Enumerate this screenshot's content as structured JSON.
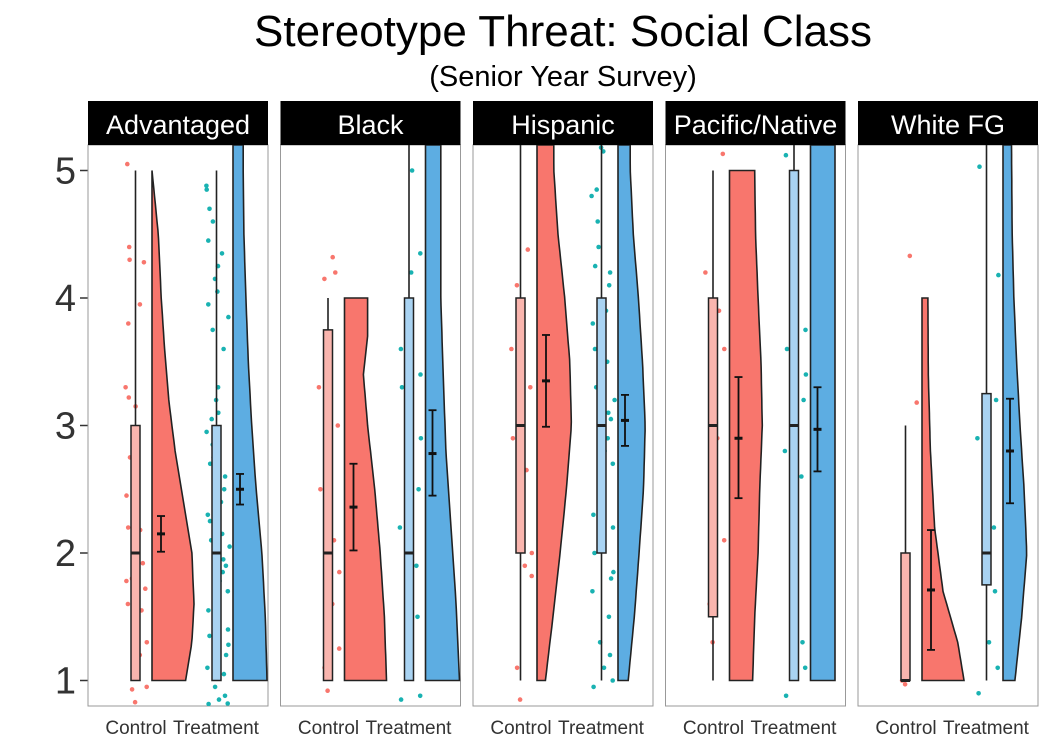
{
  "chart_data": {
    "type": "raincloud",
    "title": "Stereotype Threat: Social Class",
    "subtitle": "(Senior Year Survey)",
    "xlabel": "",
    "ylabel": "",
    "ylim": [
      0.8,
      5.2
    ],
    "yticks": [
      1,
      2,
      3,
      4,
      5
    ],
    "groups": [
      "Control",
      "Treatment"
    ],
    "colors": {
      "Control": "#f8766d",
      "Treatment": "#5dade2",
      "control_box": "#f9b5ae",
      "treatment_box": "#a9d3f2",
      "treatment_points": "#19b2b2"
    },
    "panels": [
      {
        "name": "Advantaged",
        "control": {
          "box": {
            "min": 1,
            "q1": 1,
            "median": 2,
            "q3": 3,
            "max": 5
          },
          "mean": 2.15,
          "ci": [
            2.01,
            2.29
          ],
          "density_range": [
            1,
            5
          ],
          "density": [
            [
              1,
              0.8
            ],
            [
              1.3,
              0.95
            ],
            [
              1.6,
              1.0
            ],
            [
              2.0,
              0.95
            ],
            [
              2.4,
              0.75
            ],
            [
              2.8,
              0.55
            ],
            [
              3.2,
              0.4
            ],
            [
              3.6,
              0.3
            ],
            [
              4.0,
              0.22
            ],
            [
              4.5,
              0.15
            ],
            [
              5,
              0.0
            ]
          ],
          "points": [
            0.83,
            0.93,
            0.95,
            1.2,
            1.3,
            1.55,
            1.6,
            1.72,
            1.78,
            1.8,
            1.92,
            2.18,
            2.2,
            2.45,
            2.75,
            2.85,
            3.15,
            3.22,
            3.3,
            3.8,
            3.95,
            4.28,
            4.3,
            4.4,
            5.05
          ]
        },
        "treatment": {
          "box": {
            "min": 1,
            "q1": 1,
            "median": 2,
            "q3": 3,
            "max": 5
          },
          "mean": 2.5,
          "ci": [
            2.38,
            2.62
          ],
          "density_range": [
            1,
            5.2
          ],
          "density": [
            [
              1,
              1.0
            ],
            [
              1.5,
              0.95
            ],
            [
              2.0,
              0.85
            ],
            [
              2.5,
              0.68
            ],
            [
              3.0,
              0.55
            ],
            [
              3.5,
              0.45
            ],
            [
              4.0,
              0.38
            ],
            [
              4.5,
              0.32
            ],
            [
              5.0,
              0.3
            ],
            [
              5.2,
              0.3
            ]
          ],
          "points": [
            0.8,
            0.82,
            0.85,
            0.88,
            0.95,
            1.05,
            1.1,
            1.2,
            1.28,
            1.35,
            1.4,
            1.55,
            1.62,
            1.7,
            1.78,
            1.85,
            1.9,
            1.95,
            2.05,
            2.1,
            2.15,
            2.25,
            2.3,
            2.4,
            2.5,
            2.6,
            2.7,
            2.75,
            2.85,
            2.95,
            3.05,
            3.1,
            3.2,
            3.3,
            3.6,
            3.75,
            3.85,
            3.95,
            4.05,
            4.15,
            4.25,
            4.35,
            4.45,
            4.6,
            4.7,
            4.85,
            4.88
          ]
        }
      },
      {
        "name": "Black",
        "control": {
          "box": {
            "min": 1,
            "q1": 1,
            "median": 2,
            "q3": 3.75,
            "max": 4
          },
          "mean": 2.36,
          "ci": [
            2.02,
            2.7
          ],
          "density_range": [
            1,
            4
          ],
          "density": [
            [
              1,
              1.0
            ],
            [
              1.5,
              0.95
            ],
            [
              2.0,
              0.85
            ],
            [
              2.5,
              0.72
            ],
            [
              3.0,
              0.55
            ],
            [
              3.4,
              0.45
            ],
            [
              3.7,
              0.55
            ],
            [
              4.0,
              0.55
            ]
          ],
          "points": [
            0.92,
            1.1,
            1.25,
            1.6,
            1.85,
            2.1,
            2.5,
            3.0,
            3.3,
            4.15,
            4.2,
            4.32
          ]
        },
        "treatment": {
          "box": {
            "min": 1,
            "q1": 1,
            "median": 2,
            "q3": 4,
            "max": 5.2
          },
          "mean": 2.78,
          "ci": [
            2.45,
            3.12
          ],
          "density_range": [
            1,
            5.2
          ],
          "density": [
            [
              1,
              1.0
            ],
            [
              1.6,
              0.9
            ],
            [
              2.2,
              0.75
            ],
            [
              2.8,
              0.6
            ],
            [
              3.4,
              0.52
            ],
            [
              4.0,
              0.45
            ],
            [
              4.6,
              0.45
            ],
            [
              5.2,
              0.45
            ]
          ],
          "points": [
            0.85,
            0.88,
            1.2,
            1.5,
            1.7,
            1.9,
            2.2,
            2.5,
            2.9,
            3.3,
            3.4,
            3.6,
            4.2,
            4.35,
            5.0
          ]
        }
      },
      {
        "name": "Hispanic",
        "control": {
          "box": {
            "min": 1,
            "q1": 2,
            "median": 3,
            "q3": 4,
            "max": 5.2
          },
          "mean": 3.35,
          "ci": [
            2.99,
            3.71
          ],
          "density_range": [
            1,
            5.2
          ],
          "density": [
            [
              1,
              0.2
            ],
            [
              1.5,
              0.38
            ],
            [
              2.0,
              0.55
            ],
            [
              2.5,
              0.7
            ],
            [
              3.0,
              0.82
            ],
            [
              3.5,
              0.78
            ],
            [
              4.0,
              0.66
            ],
            [
              4.5,
              0.5
            ],
            [
              5.0,
              0.4
            ],
            [
              5.2,
              0.4
            ]
          ],
          "points": [
            0.85,
            1.1,
            1.82,
            1.9,
            2.0,
            2.65,
            2.9,
            3.3,
            3.6,
            4.1,
            4.38
          ]
        },
        "treatment": {
          "box": {
            "min": 1,
            "q1": 2,
            "median": 3,
            "q3": 4,
            "max": 5.2
          },
          "mean": 3.04,
          "ci": [
            2.84,
            3.24
          ],
          "density_range": [
            1,
            5.2
          ],
          "density": [
            [
              1,
              0.3
            ],
            [
              1.5,
              0.48
            ],
            [
              2.0,
              0.62
            ],
            [
              2.5,
              0.75
            ],
            [
              3.0,
              0.8
            ],
            [
              3.5,
              0.72
            ],
            [
              4.0,
              0.6
            ],
            [
              4.5,
              0.45
            ],
            [
              5.0,
              0.36
            ],
            [
              5.2,
              0.36
            ]
          ],
          "points": [
            0.95,
            1.0,
            1.1,
            1.2,
            1.3,
            1.5,
            1.7,
            1.8,
            1.85,
            2.0,
            2.2,
            2.3,
            2.5,
            2.7,
            2.8,
            2.9,
            3.05,
            3.1,
            3.2,
            3.3,
            3.5,
            3.6,
            3.8,
            3.9,
            4.1,
            4.2,
            4.25,
            4.4,
            4.6,
            4.8,
            4.85,
            5.15,
            5.18
          ]
        }
      },
      {
        "name": "Pacific/Native",
        "control": {
          "box": {
            "min": 1,
            "q1": 1.5,
            "median": 3,
            "q3": 4,
            "max": 5
          },
          "mean": 2.9,
          "ci": [
            2.43,
            3.38
          ],
          "density_range": [
            1,
            5
          ],
          "density": [
            [
              1,
              0.55
            ],
            [
              1.5,
              0.6
            ],
            [
              2.0,
              0.68
            ],
            [
              2.5,
              0.72
            ],
            [
              3.0,
              0.78
            ],
            [
              3.5,
              0.75
            ],
            [
              4.0,
              0.68
            ],
            [
              4.5,
              0.62
            ],
            [
              5.0,
              0.6
            ]
          ],
          "points": [
            1.3,
            1.6,
            2.1,
            2.9,
            3.6,
            3.9,
            4.2,
            5.13
          ]
        },
        "treatment": {
          "box": {
            "min": 1,
            "q1": 1,
            "median": 3,
            "q3": 5,
            "max": 5.2
          },
          "mean": 2.97,
          "ci": [
            2.64,
            3.3
          ],
          "density_range": [
            1,
            5.2
          ],
          "density": [
            [
              1,
              0.72
            ],
            [
              2.0,
              0.72
            ],
            [
              3.0,
              0.72
            ],
            [
              4.0,
              0.72
            ],
            [
              5.2,
              0.72
            ]
          ],
          "points": [
            0.88,
            1.1,
            1.2,
            1.3,
            1.85,
            2.6,
            2.8,
            3.2,
            3.4,
            3.6,
            3.75,
            5.12
          ]
        }
      },
      {
        "name": "White FG",
        "control": {
          "box": {
            "min": 1,
            "q1": 1,
            "median": 1,
            "q3": 2,
            "max": 3
          },
          "mean": 1.71,
          "ci": [
            1.24,
            2.18
          ],
          "density_range": [
            1,
            4
          ],
          "density": [
            [
              1,
              1.0
            ],
            [
              1.3,
              0.85
            ],
            [
              1.7,
              0.5
            ],
            [
              2.2,
              0.3
            ],
            [
              2.8,
              0.2
            ],
            [
              3.4,
              0.15
            ],
            [
              4.0,
              0.14
            ]
          ],
          "points": [
            0.97,
            1.0,
            3.18,
            4.33
          ]
        },
        "treatment": {
          "box": {
            "min": 1,
            "q1": 1.75,
            "median": 2,
            "q3": 3.25,
            "max": 5.2
          },
          "mean": 2.8,
          "ci": [
            2.39,
            3.21
          ],
          "density_range": [
            1,
            5.2
          ],
          "density": [
            [
              1,
              0.35
            ],
            [
              1.5,
              0.55
            ],
            [
              2.0,
              0.7
            ],
            [
              2.5,
              0.62
            ],
            [
              3.0,
              0.5
            ],
            [
              3.5,
              0.4
            ],
            [
              4.0,
              0.32
            ],
            [
              4.5,
              0.27
            ],
            [
              5.2,
              0.25
            ]
          ],
          "points": [
            0.9,
            1.1,
            1.3,
            1.7,
            2.0,
            2.2,
            2.9,
            3.2,
            4.18,
            5.03
          ]
        }
      }
    ]
  }
}
